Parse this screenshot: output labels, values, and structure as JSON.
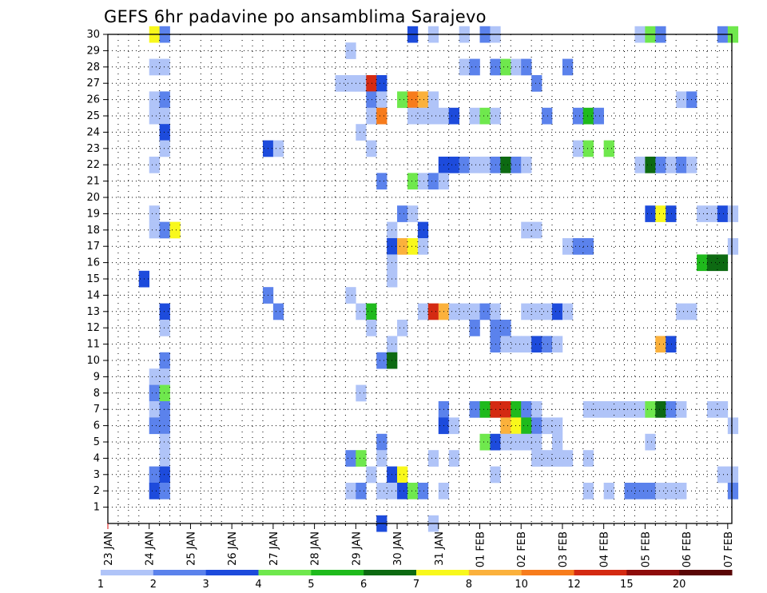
{
  "chart_data": {
    "type": "heatmap",
    "title": "GEFS 6hr padavine po ansamblima Sarajevo",
    "xlabel": "",
    "ylabel": "",
    "x_tick_labels": [
      "23 JAN",
      "24 JAN",
      "25 JAN",
      "26 JAN",
      "27 JAN",
      "28 JAN",
      "29 JAN",
      "30 JAN",
      "31 JAN",
      "01 FEB",
      "02 FEB",
      "03 FEB",
      "04 FEB",
      "05 FEB",
      "06 FEB",
      "07 FEB"
    ],
    "y_tick_labels": [
      "1",
      "2",
      "3",
      "4",
      "5",
      "6",
      "7",
      "8",
      "9",
      "10",
      "11",
      "12",
      "13",
      "14",
      "15",
      "16",
      "17",
      "18",
      "19",
      "20",
      "21",
      "22",
      "23",
      "24",
      "25",
      "26",
      "27",
      "28",
      "29",
      "30"
    ],
    "x_range_days": [
      0,
      15.1
    ],
    "y_range_members": [
      0,
      30
    ],
    "colorbar_labels": [
      "1",
      "2",
      "3",
      "4",
      "5",
      "6",
      "7",
      "8",
      "10",
      "12",
      "15",
      "20"
    ],
    "colorbar_colors": [
      "#b0c4f8",
      "#5b82ec",
      "#1d4bdc",
      "#6fe84d",
      "#1fba1c",
      "#0d6a12",
      "#f8f81c",
      "#fbb13c",
      "#f77c1c",
      "#d42a12",
      "#8e0c0a",
      "#5a0606"
    ],
    "cell_hours": 6,
    "cells": [
      {
        "m": 30,
        "d": 1.0,
        "c": 7
      },
      {
        "m": 30,
        "d": 1.25,
        "c": 2
      },
      {
        "m": 30,
        "d": 7.25,
        "c": 3
      },
      {
        "m": 30,
        "d": 7.75,
        "c": 1
      },
      {
        "m": 30,
        "d": 8.5,
        "c": 1
      },
      {
        "m": 30,
        "d": 9.0,
        "c": 2
      },
      {
        "m": 30,
        "d": 9.25,
        "c": 1
      },
      {
        "m": 30,
        "d": 12.75,
        "c": 1
      },
      {
        "m": 30,
        "d": 13.0,
        "c": 4
      },
      {
        "m": 30,
        "d": 13.25,
        "c": 2
      },
      {
        "m": 30,
        "d": 14.75,
        "c": 2
      },
      {
        "m": 30,
        "d": 15.0,
        "c": 4
      },
      {
        "m": 29,
        "d": 5.75,
        "c": 1
      },
      {
        "m": 28,
        "d": 1.0,
        "c": 1
      },
      {
        "m": 28,
        "d": 1.25,
        "c": 1
      },
      {
        "m": 28,
        "d": 8.5,
        "c": 1
      },
      {
        "m": 28,
        "d": 8.75,
        "c": 2
      },
      {
        "m": 28,
        "d": 9.25,
        "c": 2
      },
      {
        "m": 28,
        "d": 9.5,
        "c": 4
      },
      {
        "m": 28,
        "d": 9.75,
        "c": 1
      },
      {
        "m": 28,
        "d": 10.0,
        "c": 2
      },
      {
        "m": 28,
        "d": 11.0,
        "c": 2
      },
      {
        "m": 27,
        "d": 5.5,
        "c": 1
      },
      {
        "m": 27,
        "d": 5.75,
        "c": 1
      },
      {
        "m": 27,
        "d": 6.0,
        "c": 1
      },
      {
        "m": 27,
        "d": 6.25,
        "c": 10
      },
      {
        "m": 27,
        "d": 6.5,
        "c": 3
      },
      {
        "m": 27,
        "d": 10.25,
        "c": 2
      },
      {
        "m": 26,
        "d": 1.0,
        "c": 1
      },
      {
        "m": 26,
        "d": 1.25,
        "c": 2
      },
      {
        "m": 26,
        "d": 6.25,
        "c": 2
      },
      {
        "m": 26,
        "d": 6.5,
        "c": 1
      },
      {
        "m": 26,
        "d": 7.0,
        "c": 4
      },
      {
        "m": 26,
        "d": 7.25,
        "c": 9
      },
      {
        "m": 26,
        "d": 7.5,
        "c": 8
      },
      {
        "m": 26,
        "d": 7.75,
        "c": 1
      },
      {
        "m": 26,
        "d": 13.75,
        "c": 1
      },
      {
        "m": 26,
        "d": 14.0,
        "c": 2
      },
      {
        "m": 25,
        "d": 1.0,
        "c": 1
      },
      {
        "m": 25,
        "d": 1.25,
        "c": 1
      },
      {
        "m": 25,
        "d": 6.25,
        "c": 1
      },
      {
        "m": 25,
        "d": 6.5,
        "c": 9
      },
      {
        "m": 25,
        "d": 7.25,
        "c": 1
      },
      {
        "m": 25,
        "d": 7.5,
        "c": 1
      },
      {
        "m": 25,
        "d": 7.75,
        "c": 1
      },
      {
        "m": 25,
        "d": 8.0,
        "c": 1
      },
      {
        "m": 25,
        "d": 8.25,
        "c": 3
      },
      {
        "m": 25,
        "d": 8.75,
        "c": 1
      },
      {
        "m": 25,
        "d": 9.0,
        "c": 4
      },
      {
        "m": 25,
        "d": 9.25,
        "c": 1
      },
      {
        "m": 25,
        "d": 10.5,
        "c": 2
      },
      {
        "m": 25,
        "d": 11.25,
        "c": 2
      },
      {
        "m": 25,
        "d": 11.5,
        "c": 5
      },
      {
        "m": 25,
        "d": 11.75,
        "c": 2
      },
      {
        "m": 24,
        "d": 1.25,
        "c": 3
      },
      {
        "m": 24,
        "d": 6.0,
        "c": 1
      },
      {
        "m": 23,
        "d": 1.25,
        "c": 1
      },
      {
        "m": 23,
        "d": 3.75,
        "c": 3
      },
      {
        "m": 23,
        "d": 4.0,
        "c": 1
      },
      {
        "m": 23,
        "d": 6.25,
        "c": 1
      },
      {
        "m": 23,
        "d": 11.25,
        "c": 1
      },
      {
        "m": 23,
        "d": 11.5,
        "c": 4
      },
      {
        "m": 23,
        "d": 12.0,
        "c": 4
      },
      {
        "m": 22,
        "d": 1.0,
        "c": 1
      },
      {
        "m": 22,
        "d": 8.0,
        "c": 3
      },
      {
        "m": 22,
        "d": 8.25,
        "c": 3
      },
      {
        "m": 22,
        "d": 8.5,
        "c": 2
      },
      {
        "m": 22,
        "d": 8.75,
        "c": 1
      },
      {
        "m": 22,
        "d": 9.0,
        "c": 1
      },
      {
        "m": 22,
        "d": 9.25,
        "c": 2
      },
      {
        "m": 22,
        "d": 9.5,
        "c": 6
      },
      {
        "m": 22,
        "d": 9.75,
        "c": 2
      },
      {
        "m": 22,
        "d": 10.0,
        "c": 1
      },
      {
        "m": 22,
        "d": 12.75,
        "c": 1
      },
      {
        "m": 22,
        "d": 13.0,
        "c": 6
      },
      {
        "m": 22,
        "d": 13.25,
        "c": 2
      },
      {
        "m": 22,
        "d": 13.5,
        "c": 1
      },
      {
        "m": 22,
        "d": 13.75,
        "c": 2
      },
      {
        "m": 22,
        "d": 14.0,
        "c": 1
      },
      {
        "m": 21,
        "d": 6.5,
        "c": 2
      },
      {
        "m": 21,
        "d": 7.25,
        "c": 4
      },
      {
        "m": 21,
        "d": 7.5,
        "c": 1
      },
      {
        "m": 21,
        "d": 7.75,
        "c": 2
      },
      {
        "m": 21,
        "d": 8.0,
        "c": 1
      },
      {
        "m": 19,
        "d": 1.0,
        "c": 1
      },
      {
        "m": 19,
        "d": 7.0,
        "c": 2
      },
      {
        "m": 19,
        "d": 7.25,
        "c": 1
      },
      {
        "m": 19,
        "d": 13.0,
        "c": 3
      },
      {
        "m": 19,
        "d": 13.25,
        "c": 7
      },
      {
        "m": 19,
        "d": 13.5,
        "c": 3
      },
      {
        "m": 19,
        "d": 14.25,
        "c": 1
      },
      {
        "m": 19,
        "d": 14.5,
        "c": 1
      },
      {
        "m": 19,
        "d": 14.75,
        "c": 3
      },
      {
        "m": 19,
        "d": 15.0,
        "c": 1
      },
      {
        "m": 18,
        "d": 1.0,
        "c": 1
      },
      {
        "m": 18,
        "d": 1.25,
        "c": 2
      },
      {
        "m": 18,
        "d": 1.5,
        "c": 7
      },
      {
        "m": 18,
        "d": 6.75,
        "c": 1
      },
      {
        "m": 18,
        "d": 7.5,
        "c": 3
      },
      {
        "m": 18,
        "d": 10.0,
        "c": 1
      },
      {
        "m": 18,
        "d": 10.25,
        "c": 1
      },
      {
        "m": 17,
        "d": 6.75,
        "c": 3
      },
      {
        "m": 17,
        "d": 7.0,
        "c": 8
      },
      {
        "m": 17,
        "d": 7.25,
        "c": 7
      },
      {
        "m": 17,
        "d": 7.5,
        "c": 1
      },
      {
        "m": 17,
        "d": 11.0,
        "c": 1
      },
      {
        "m": 17,
        "d": 11.25,
        "c": 2
      },
      {
        "m": 17,
        "d": 11.5,
        "c": 2
      },
      {
        "m": 17,
        "d": 15.0,
        "c": 1
      },
      {
        "m": 16,
        "d": 6.75,
        "c": 1
      },
      {
        "m": 16,
        "d": 14.25,
        "c": 5
      },
      {
        "m": 16,
        "d": 14.5,
        "c": 6
      },
      {
        "m": 16,
        "d": 14.75,
        "c": 6
      },
      {
        "m": 15,
        "d": 0.75,
        "c": 3
      },
      {
        "m": 15,
        "d": 6.75,
        "c": 1
      },
      {
        "m": 14,
        "d": 3.75,
        "c": 2
      },
      {
        "m": 14,
        "d": 5.75,
        "c": 1
      },
      {
        "m": 13,
        "d": 1.25,
        "c": 3
      },
      {
        "m": 13,
        "d": 4.0,
        "c": 2
      },
      {
        "m": 13,
        "d": 6.0,
        "c": 1
      },
      {
        "m": 13,
        "d": 6.25,
        "c": 5
      },
      {
        "m": 13,
        "d": 7.5,
        "c": 1
      },
      {
        "m": 13,
        "d": 7.75,
        "c": 10
      },
      {
        "m": 13,
        "d": 8.0,
        "c": 8
      },
      {
        "m": 13,
        "d": 8.25,
        "c": 1
      },
      {
        "m": 13,
        "d": 8.5,
        "c": 1
      },
      {
        "m": 13,
        "d": 8.75,
        "c": 1
      },
      {
        "m": 13,
        "d": 9.0,
        "c": 2
      },
      {
        "m": 13,
        "d": 9.25,
        "c": 1
      },
      {
        "m": 13,
        "d": 10.0,
        "c": 1
      },
      {
        "m": 13,
        "d": 10.25,
        "c": 1
      },
      {
        "m": 13,
        "d": 10.5,
        "c": 1
      },
      {
        "m": 13,
        "d": 10.75,
        "c": 3
      },
      {
        "m": 13,
        "d": 11.0,
        "c": 1
      },
      {
        "m": 13,
        "d": 13.75,
        "c": 1
      },
      {
        "m": 13,
        "d": 14.0,
        "c": 1
      },
      {
        "m": 12,
        "d": 1.25,
        "c": 1
      },
      {
        "m": 12,
        "d": 6.25,
        "c": 1
      },
      {
        "m": 12,
        "d": 7.0,
        "c": 1
      },
      {
        "m": 12,
        "d": 8.75,
        "c": 2
      },
      {
        "m": 12,
        "d": 9.25,
        "c": 2
      },
      {
        "m": 12,
        "d": 9.5,
        "c": 2
      },
      {
        "m": 11,
        "d": 6.75,
        "c": 1
      },
      {
        "m": 11,
        "d": 9.25,
        "c": 2
      },
      {
        "m": 11,
        "d": 9.5,
        "c": 1
      },
      {
        "m": 11,
        "d": 9.75,
        "c": 1
      },
      {
        "m": 11,
        "d": 10.0,
        "c": 1
      },
      {
        "m": 11,
        "d": 10.25,
        "c": 3
      },
      {
        "m": 11,
        "d": 10.5,
        "c": 2
      },
      {
        "m": 11,
        "d": 10.75,
        "c": 1
      },
      {
        "m": 11,
        "d": 13.25,
        "c": 8
      },
      {
        "m": 11,
        "d": 13.5,
        "c": 3
      },
      {
        "m": 10,
        "d": 1.25,
        "c": 2
      },
      {
        "m": 10,
        "d": 6.5,
        "c": 2
      },
      {
        "m": 10,
        "d": 6.75,
        "c": 6
      },
      {
        "m": 9,
        "d": 1.0,
        "c": 1
      },
      {
        "m": 9,
        "d": 1.25,
        "c": 1
      },
      {
        "m": 8,
        "d": 1.0,
        "c": 2
      },
      {
        "m": 8,
        "d": 1.25,
        "c": 4
      },
      {
        "m": 8,
        "d": 6.0,
        "c": 1
      },
      {
        "m": 7,
        "d": 1.0,
        "c": 1
      },
      {
        "m": 7,
        "d": 1.25,
        "c": 2
      },
      {
        "m": 7,
        "d": 8.0,
        "c": 2
      },
      {
        "m": 7,
        "d": 8.75,
        "c": 2
      },
      {
        "m": 7,
        "d": 9.0,
        "c": 5
      },
      {
        "m": 7,
        "d": 9.25,
        "c": 10
      },
      {
        "m": 7,
        "d": 9.5,
        "c": 10
      },
      {
        "m": 7,
        "d": 9.75,
        "c": 5
      },
      {
        "m": 7,
        "d": 10.0,
        "c": 2
      },
      {
        "m": 7,
        "d": 10.25,
        "c": 1
      },
      {
        "m": 7,
        "d": 11.5,
        "c": 1
      },
      {
        "m": 7,
        "d": 11.75,
        "c": 1
      },
      {
        "m": 7,
        "d": 12.0,
        "c": 1
      },
      {
        "m": 7,
        "d": 12.25,
        "c": 1
      },
      {
        "m": 7,
        "d": 12.5,
        "c": 1
      },
      {
        "m": 7,
        "d": 12.75,
        "c": 1
      },
      {
        "m": 7,
        "d": 13.0,
        "c": 4
      },
      {
        "m": 7,
        "d": 13.25,
        "c": 6
      },
      {
        "m": 7,
        "d": 13.5,
        "c": 2
      },
      {
        "m": 7,
        "d": 13.75,
        "c": 1
      },
      {
        "m": 7,
        "d": 14.5,
        "c": 1
      },
      {
        "m": 7,
        "d": 14.75,
        "c": 1
      },
      {
        "m": 6,
        "d": 1.0,
        "c": 2
      },
      {
        "m": 6,
        "d": 1.25,
        "c": 2
      },
      {
        "m": 6,
        "d": 8.0,
        "c": 3
      },
      {
        "m": 6,
        "d": 8.25,
        "c": 1
      },
      {
        "m": 6,
        "d": 9.5,
        "c": 8
      },
      {
        "m": 6,
        "d": 9.75,
        "c": 7
      },
      {
        "m": 6,
        "d": 10.0,
        "c": 5
      },
      {
        "m": 6,
        "d": 10.25,
        "c": 2
      },
      {
        "m": 6,
        "d": 10.5,
        "c": 1
      },
      {
        "m": 6,
        "d": 10.75,
        "c": 1
      },
      {
        "m": 6,
        "d": 15.0,
        "c": 1
      },
      {
        "m": 5,
        "d": 1.25,
        "c": 1
      },
      {
        "m": 5,
        "d": 6.5,
        "c": 2
      },
      {
        "m": 5,
        "d": 9.0,
        "c": 4
      },
      {
        "m": 5,
        "d": 9.25,
        "c": 3
      },
      {
        "m": 5,
        "d": 9.5,
        "c": 1
      },
      {
        "m": 5,
        "d": 9.75,
        "c": 1
      },
      {
        "m": 5,
        "d": 10.0,
        "c": 1
      },
      {
        "m": 5,
        "d": 10.25,
        "c": 1
      },
      {
        "m": 5,
        "d": 10.75,
        "c": 1
      },
      {
        "m": 5,
        "d": 13.0,
        "c": 1
      },
      {
        "m": 4,
        "d": 1.25,
        "c": 1
      },
      {
        "m": 4,
        "d": 5.75,
        "c": 2
      },
      {
        "m": 4,
        "d": 6.0,
        "c": 4
      },
      {
        "m": 4,
        "d": 6.5,
        "c": 1
      },
      {
        "m": 4,
        "d": 7.75,
        "c": 1
      },
      {
        "m": 4,
        "d": 8.25,
        "c": 1
      },
      {
        "m": 4,
        "d": 10.25,
        "c": 1
      },
      {
        "m": 4,
        "d": 10.5,
        "c": 1
      },
      {
        "m": 4,
        "d": 10.75,
        "c": 1
      },
      {
        "m": 4,
        "d": 11.0,
        "c": 1
      },
      {
        "m": 4,
        "d": 11.5,
        "c": 1
      },
      {
        "m": 3,
        "d": 1.0,
        "c": 2
      },
      {
        "m": 3,
        "d": 1.25,
        "c": 3
      },
      {
        "m": 3,
        "d": 6.25,
        "c": 1
      },
      {
        "m": 3,
        "d": 6.75,
        "c": 3
      },
      {
        "m": 3,
        "d": 7.0,
        "c": 7
      },
      {
        "m": 3,
        "d": 9.25,
        "c": 1
      },
      {
        "m": 3,
        "d": 14.75,
        "c": 1
      },
      {
        "m": 3,
        "d": 15.0,
        "c": 1
      },
      {
        "m": 2,
        "d": 1.0,
        "c": 3
      },
      {
        "m": 2,
        "d": 1.25,
        "c": 2
      },
      {
        "m": 2,
        "d": 5.75,
        "c": 1
      },
      {
        "m": 2,
        "d": 6.0,
        "c": 2
      },
      {
        "m": 2,
        "d": 6.5,
        "c": 1
      },
      {
        "m": 2,
        "d": 6.75,
        "c": 1
      },
      {
        "m": 2,
        "d": 7.0,
        "c": 3
      },
      {
        "m": 2,
        "d": 7.25,
        "c": 4
      },
      {
        "m": 2,
        "d": 7.5,
        "c": 2
      },
      {
        "m": 2,
        "d": 8.0,
        "c": 1
      },
      {
        "m": 2,
        "d": 11.5,
        "c": 1
      },
      {
        "m": 2,
        "d": 12.0,
        "c": 1
      },
      {
        "m": 2,
        "d": 12.5,
        "c": 2
      },
      {
        "m": 2,
        "d": 12.75,
        "c": 2
      },
      {
        "m": 2,
        "d": 13.0,
        "c": 2
      },
      {
        "m": 2,
        "d": 13.25,
        "c": 1
      },
      {
        "m": 2,
        "d": 13.5,
        "c": 1
      },
      {
        "m": 2,
        "d": 13.75,
        "c": 1
      },
      {
        "m": 2,
        "d": 15.0,
        "c": 2
      },
      {
        "m": 0,
        "d": 6.5,
        "c": 3
      },
      {
        "m": 0,
        "d": 7.75,
        "c": 1
      }
    ]
  }
}
